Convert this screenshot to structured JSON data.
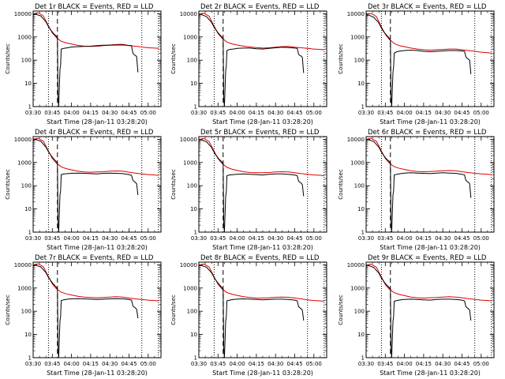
{
  "chart_data": {
    "type": "line",
    "panel_grid": {
      "rows": 3,
      "cols": 3
    },
    "x_axis": {
      "label": "Start Time (28-Jan-11 03:28:20)",
      "tick_labels": [
        "03:30",
        "03:45",
        "04:00",
        "04:15",
        "04:30",
        "04:45",
        "05:00"
      ],
      "tick_minutes": [
        0,
        15,
        30,
        45,
        60,
        75,
        90
      ],
      "xlim_minutes": [
        0,
        100
      ]
    },
    "y_axis": {
      "label": "Counts/sec",
      "scale": "log",
      "tick_labels": [
        "1",
        "10",
        "100",
        "1000",
        "10000"
      ],
      "tick_values": [
        1,
        10,
        100,
        1000,
        10000
      ],
      "ylim": [
        1,
        13000
      ]
    },
    "series_colors": {
      "events": "#000000",
      "lld": "#dd0000"
    },
    "markers": {
      "dotted_x_minutes": [
        12,
        85,
        98
      ],
      "dashed_x_minutes": [
        19
      ]
    },
    "panels": [
      {
        "title": "Det 1r BLACK = Events, RED = LLD",
        "events": {
          "x": [
            0,
            2,
            6,
            10,
            12,
            14,
            16,
            18,
            19,
            19.5,
            20,
            21,
            21.5,
            22,
            24,
            27,
            30,
            35,
            40,
            45,
            50,
            55,
            60,
            65,
            70,
            75,
            77,
            78,
            79,
            80,
            81,
            82
          ],
          "y": [
            9000,
            9500,
            8000,
            4500,
            2800,
            1900,
            1400,
            1100,
            900,
            2,
            1,
            40,
            60,
            300,
            320,
            340,
            370,
            380,
            390,
            400,
            420,
            440,
            440,
            450,
            450,
            430,
            420,
            200,
            170,
            160,
            140,
            30
          ]
        },
        "lld": {
          "x": [
            0,
            4,
            8,
            12,
            15,
            18,
            22,
            26,
            30,
            35,
            40,
            45,
            50,
            55,
            60,
            65,
            70,
            75,
            80,
            85,
            90,
            95,
            98
          ],
          "y": [
            10000,
            11000,
            8000,
            3000,
            1500,
            950,
            650,
            550,
            500,
            430,
            400,
            390,
            400,
            420,
            450,
            470,
            480,
            420,
            400,
            370,
            340,
            330,
            320
          ]
        }
      },
      {
        "title": "Det 2r BLACK = Events, RED = LLD",
        "events": {
          "x": [
            0,
            2,
            6,
            10,
            12,
            14,
            16,
            18,
            19,
            19.5,
            20,
            21,
            21.5,
            22,
            24,
            27,
            30,
            35,
            40,
            45,
            50,
            55,
            60,
            65,
            70,
            75,
            77,
            78,
            79,
            80,
            81,
            82
          ],
          "y": [
            8500,
            9200,
            7500,
            4200,
            2600,
            1800,
            1300,
            1000,
            850,
            2,
            1,
            35,
            55,
            260,
            290,
            300,
            320,
            330,
            330,
            310,
            300,
            320,
            340,
            360,
            350,
            330,
            320,
            180,
            160,
            150,
            130,
            28
          ]
        },
        "lld": {
          "x": [
            0,
            4,
            8,
            12,
            15,
            18,
            22,
            26,
            30,
            35,
            40,
            45,
            50,
            55,
            60,
            65,
            70,
            75,
            80,
            85,
            90,
            95,
            98
          ],
          "y": [
            9800,
            10500,
            7800,
            2900,
            1400,
            900,
            600,
            500,
            450,
            400,
            370,
            350,
            330,
            340,
            360,
            380,
            390,
            360,
            340,
            320,
            300,
            290,
            280
          ]
        }
      },
      {
        "title": "Det 3r BLACK = Events, RED = LLD",
        "events": {
          "x": [
            0,
            2,
            6,
            10,
            12,
            14,
            16,
            18,
            19,
            19.5,
            20,
            21,
            21.5,
            22,
            24,
            27,
            30,
            35,
            40,
            45,
            50,
            55,
            60,
            65,
            70,
            75,
            77,
            78,
            79,
            80,
            81,
            82
          ],
          "y": [
            8000,
            8800,
            7000,
            4000,
            2400,
            1600,
            1200,
            900,
            700,
            2,
            1,
            30,
            50,
            200,
            230,
            250,
            260,
            270,
            260,
            240,
            230,
            240,
            250,
            260,
            260,
            250,
            240,
            140,
            120,
            110,
            100,
            25
          ]
        },
        "lld": {
          "x": [
            0,
            4,
            8,
            12,
            15,
            18,
            22,
            26,
            30,
            35,
            40,
            45,
            50,
            55,
            60,
            65,
            70,
            75,
            80,
            85,
            90,
            95,
            98
          ],
          "y": [
            9500,
            10200,
            7500,
            2700,
            1300,
            800,
            520,
            420,
            380,
            330,
            300,
            280,
            270,
            280,
            290,
            300,
            300,
            280,
            260,
            240,
            220,
            210,
            200
          ]
        }
      },
      {
        "title": "Det 4r BLACK = Events, RED = LLD",
        "events": {
          "x": [
            0,
            2,
            6,
            10,
            12,
            14,
            16,
            18,
            19,
            19.5,
            20,
            21,
            21.5,
            22,
            24,
            27,
            30,
            35,
            40,
            45,
            50,
            55,
            60,
            65,
            70,
            75,
            77,
            78,
            79,
            80,
            81,
            82
          ],
          "y": [
            9200,
            9700,
            8200,
            4600,
            2900,
            2000,
            1450,
            1100,
            900,
            2,
            1,
            40,
            60,
            300,
            320,
            330,
            340,
            350,
            340,
            330,
            320,
            340,
            350,
            340,
            330,
            300,
            280,
            170,
            150,
            140,
            120,
            40
          ]
        },
        "lld": {
          "x": [
            0,
            4,
            8,
            12,
            15,
            18,
            22,
            26,
            30,
            35,
            40,
            45,
            50,
            55,
            60,
            65,
            70,
            75,
            80,
            85,
            90,
            95,
            98
          ],
          "y": [
            10000,
            11000,
            8200,
            3100,
            1500,
            950,
            650,
            540,
            480,
            420,
            390,
            380,
            390,
            400,
            420,
            430,
            420,
            380,
            350,
            320,
            300,
            290,
            280
          ]
        }
      },
      {
        "title": "Det 5r BLACK = Events, RED = LLD",
        "events": {
          "x": [
            0,
            2,
            6,
            10,
            12,
            14,
            16,
            18,
            19,
            19.5,
            20,
            21,
            21.5,
            22,
            24,
            27,
            30,
            35,
            40,
            45,
            50,
            55,
            60,
            65,
            70,
            75,
            77,
            78,
            79,
            80,
            81,
            82
          ],
          "y": [
            8800,
            9300,
            7800,
            4400,
            2700,
            1850,
            1350,
            1050,
            850,
            2,
            1,
            35,
            55,
            270,
            290,
            300,
            310,
            320,
            310,
            300,
            290,
            310,
            320,
            320,
            310,
            290,
            270,
            160,
            140,
            130,
            110,
            35
          ]
        },
        "lld": {
          "x": [
            0,
            4,
            8,
            12,
            15,
            18,
            22,
            26,
            30,
            35,
            40,
            45,
            50,
            55,
            60,
            65,
            70,
            75,
            80,
            85,
            90,
            95,
            98
          ],
          "y": [
            9900,
            10800,
            8000,
            3000,
            1450,
            920,
            620,
            510,
            460,
            400,
            370,
            360,
            360,
            370,
            390,
            400,
            390,
            360,
            330,
            310,
            290,
            280,
            270
          ]
        }
      },
      {
        "title": "Det 6r BLACK = Events, RED = LLD",
        "events": {
          "x": [
            0,
            2,
            6,
            10,
            12,
            14,
            16,
            18,
            19,
            19.5,
            20,
            21,
            21.5,
            22,
            24,
            27,
            30,
            35,
            40,
            45,
            50,
            55,
            60,
            65,
            70,
            75,
            77,
            78,
            79,
            80,
            81,
            82
          ],
          "y": [
            9000,
            9500,
            8000,
            4500,
            2800,
            1900,
            1400,
            1100,
            900,
            2,
            1,
            40,
            60,
            290,
            310,
            330,
            350,
            360,
            350,
            340,
            330,
            350,
            360,
            350,
            340,
            310,
            290,
            170,
            150,
            140,
            120,
            30
          ]
        },
        "lld": {
          "x": [
            0,
            4,
            8,
            12,
            15,
            18,
            22,
            26,
            30,
            35,
            40,
            45,
            50,
            55,
            60,
            65,
            70,
            75,
            80,
            85,
            90,
            95,
            98
          ],
          "y": [
            10000,
            11000,
            8200,
            3100,
            1500,
            950,
            660,
            560,
            500,
            440,
            410,
            400,
            410,
            420,
            440,
            450,
            440,
            400,
            370,
            340,
            320,
            310,
            300
          ]
        }
      },
      {
        "title": "Det 7r BLACK = Events, RED = LLD",
        "events": {
          "x": [
            0,
            2,
            6,
            10,
            12,
            14,
            16,
            18,
            19,
            19.5,
            20,
            21,
            21.5,
            22,
            24,
            27,
            30,
            35,
            40,
            45,
            50,
            55,
            60,
            65,
            70,
            75,
            77,
            78,
            79,
            80,
            81,
            82
          ],
          "y": [
            9100,
            9600,
            8100,
            4600,
            2900,
            2000,
            1450,
            1100,
            900,
            2,
            1,
            40,
            60,
            290,
            310,
            330,
            340,
            350,
            340,
            330,
            320,
            330,
            340,
            350,
            340,
            320,
            300,
            170,
            150,
            140,
            120,
            50
          ]
        },
        "lld": {
          "x": [
            0,
            4,
            8,
            12,
            15,
            18,
            22,
            26,
            30,
            35,
            40,
            45,
            50,
            55,
            60,
            65,
            70,
            75,
            80,
            85,
            90,
            95,
            98
          ],
          "y": [
            10000,
            11000,
            8200,
            3100,
            1500,
            950,
            660,
            560,
            500,
            440,
            410,
            390,
            380,
            390,
            410,
            420,
            410,
            370,
            340,
            320,
            300,
            290,
            280
          ]
        }
      },
      {
        "title": "Det 8r BLACK = Events, RED = LLD",
        "events": {
          "x": [
            0,
            2,
            6,
            10,
            12,
            14,
            16,
            18,
            19,
            19.5,
            20,
            21,
            21.5,
            22,
            24,
            27,
            30,
            35,
            40,
            45,
            50,
            55,
            60,
            65,
            70,
            75,
            77,
            78,
            79,
            80,
            81,
            82
          ],
          "y": [
            8900,
            9400,
            7900,
            4500,
            2800,
            1900,
            1400,
            1050,
            880,
            2,
            1,
            38,
            58,
            280,
            300,
            320,
            330,
            340,
            330,
            320,
            310,
            320,
            330,
            330,
            320,
            300,
            280,
            160,
            140,
            130,
            110,
            40
          ]
        },
        "lld": {
          "x": [
            0,
            4,
            8,
            12,
            15,
            18,
            22,
            26,
            30,
            35,
            40,
            45,
            50,
            55,
            60,
            65,
            70,
            75,
            80,
            85,
            90,
            95,
            98
          ],
          "y": [
            9900,
            10800,
            8000,
            3000,
            1450,
            930,
            640,
            540,
            480,
            420,
            390,
            370,
            370,
            380,
            400,
            410,
            400,
            370,
            340,
            310,
            290,
            280,
            270
          ]
        }
      },
      {
        "title": "Det 9r BLACK = Events, RED = LLD",
        "events": {
          "x": [
            0,
            2,
            6,
            10,
            12,
            14,
            16,
            18,
            19,
            19.5,
            20,
            21,
            21.5,
            22,
            24,
            27,
            30,
            35,
            40,
            45,
            50,
            55,
            60,
            65,
            70,
            75,
            77,
            78,
            79,
            80,
            81,
            82
          ],
          "y": [
            8700,
            9200,
            7700,
            4300,
            2700,
            1850,
            1350,
            1050,
            870,
            2,
            1,
            36,
            56,
            270,
            290,
            310,
            320,
            330,
            320,
            310,
            300,
            320,
            330,
            330,
            320,
            300,
            280,
            160,
            140,
            130,
            110,
            40
          ]
        },
        "lld": {
          "x": [
            0,
            4,
            8,
            12,
            15,
            18,
            22,
            26,
            30,
            35,
            40,
            45,
            50,
            55,
            60,
            65,
            70,
            75,
            80,
            85,
            90,
            95,
            98
          ],
          "y": [
            9800,
            10600,
            7900,
            2950,
            1420,
            910,
            630,
            530,
            470,
            410,
            380,
            370,
            380,
            390,
            410,
            420,
            410,
            380,
            350,
            320,
            300,
            290,
            280
          ]
        }
      }
    ]
  }
}
